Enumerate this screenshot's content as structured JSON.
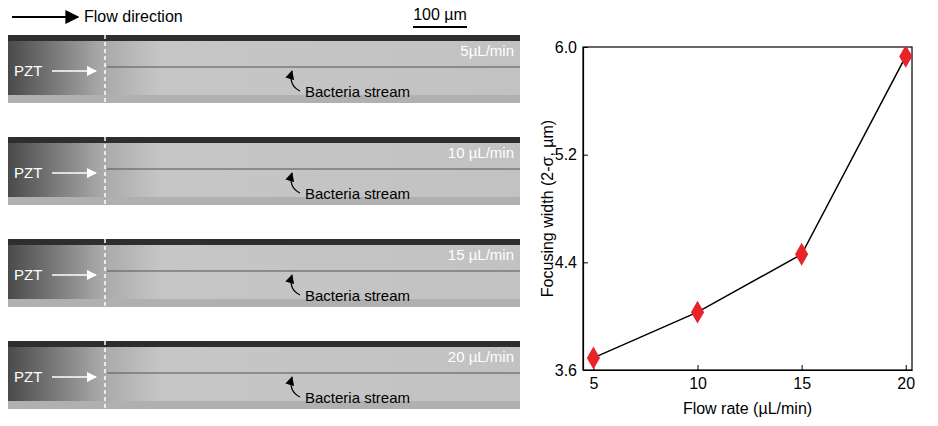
{
  "header": {
    "flow_label": "Flow direction",
    "scale_bar": "100 µm"
  },
  "panels": [
    {
      "pzt": "PZT",
      "flow_rate": "5µL/min",
      "stream_label": "Bacteria stream"
    },
    {
      "pzt": "PZT",
      "flow_rate": "10 µL/min",
      "stream_label": "Bacteria stream"
    },
    {
      "pzt": "PZT",
      "flow_rate": "15 µL/min",
      "stream_label": "Bacteria stream"
    },
    {
      "pzt": "PZT",
      "flow_rate": "20 µL/min",
      "stream_label": "Bacteria stream"
    }
  ],
  "chart_data": {
    "type": "line",
    "xlabel": "Flow rate (µL/min)",
    "ylabel": "Focusing width (2-σ, µm)",
    "x": [
      5,
      10,
      15,
      20
    ],
    "values": [
      3.69,
      4.03,
      4.46,
      5.93
    ],
    "color": "#e8232a",
    "marker": "diamond",
    "line_style": "solid",
    "xlim": [
      4.5,
      20.3
    ],
    "xticks": [
      5,
      10,
      15,
      20
    ],
    "ylim": [
      3.6,
      6.0
    ],
    "yticks": [
      3.6,
      4.4,
      5.2,
      {
        "value": 6,
        "label": "6.0"
      }
    ],
    "grid": false
  }
}
